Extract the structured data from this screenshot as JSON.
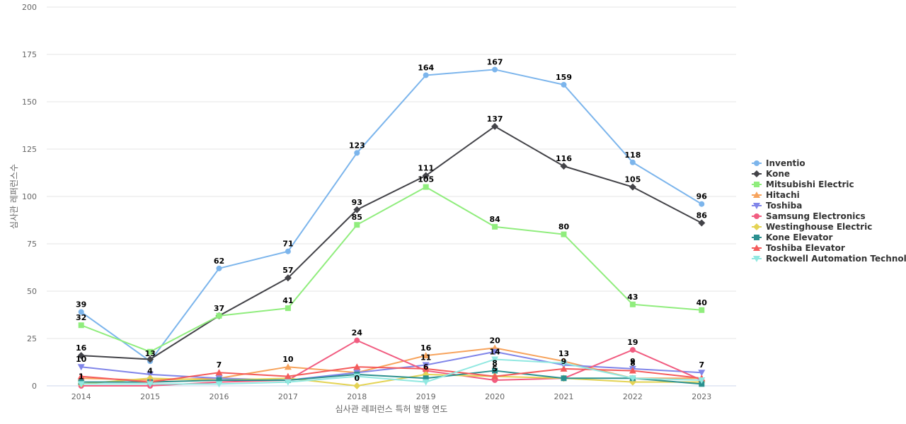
{
  "chart_data": {
    "type": "line",
    "title": "",
    "xlabel": "심사관 레퍼런스 특허 발행 연도",
    "ylabel": "심사관 레퍼런스수",
    "categories": [
      "2014",
      "2015",
      "2016",
      "2017",
      "2018",
      "2019",
      "2020",
      "2021",
      "2022",
      "2023"
    ],
    "ylim": [
      0,
      200
    ],
    "yticks": [
      0,
      25,
      50,
      75,
      100,
      125,
      150,
      175,
      200
    ],
    "grid": "horizontal",
    "legend_position": "right",
    "series": [
      {
        "name": "Inventio",
        "color": "#7cb5ec",
        "marker": "circle",
        "values": [
          39,
          13,
          62,
          71,
          123,
          164,
          167,
          159,
          118,
          96
        ],
        "labels": [
          true,
          true,
          true,
          true,
          true,
          true,
          true,
          true,
          true,
          true
        ]
      },
      {
        "name": "Kone",
        "color": "#434348",
        "marker": "diamond",
        "values": [
          16,
          14,
          37,
          57,
          93,
          111,
          137,
          116,
          105,
          86
        ],
        "labels": [
          true,
          false,
          false,
          true,
          true,
          true,
          true,
          true,
          true,
          true
        ]
      },
      {
        "name": "Mitsubishi Electric",
        "color": "#90ed7d",
        "marker": "square",
        "values": [
          32,
          18,
          37,
          41,
          85,
          105,
          84,
          80,
          43,
          40
        ],
        "labels": [
          true,
          false,
          true,
          true,
          true,
          true,
          true,
          true,
          true,
          true
        ]
      },
      {
        "name": "Hitachi",
        "color": "#f7a35c",
        "marker": "triangle",
        "values": [
          4,
          3,
          4,
          10,
          7,
          16,
          20,
          13,
          4,
          4
        ],
        "labels": [
          false,
          false,
          false,
          true,
          false,
          true,
          true,
          true,
          false,
          false
        ]
      },
      {
        "name": "Toshiba",
        "color": "#8085e9",
        "marker": "triangle-down",
        "values": [
          10,
          6,
          4,
          3,
          7,
          11,
          18,
          11,
          9,
          7
        ],
        "labels": [
          true,
          false,
          false,
          false,
          false,
          true,
          false,
          false,
          true,
          true
        ]
      },
      {
        "name": "Samsung Electronics",
        "color": "#f15c80",
        "marker": "circle",
        "values": [
          0,
          0,
          2,
          3,
          24,
          8,
          3,
          4,
          19,
          3
        ],
        "labels": [
          false,
          false,
          false,
          false,
          true,
          false,
          false,
          false,
          true,
          false
        ]
      },
      {
        "name": "Westinghouse Electric",
        "color": "#e4d354",
        "marker": "diamond",
        "values": [
          1,
          4,
          3,
          4,
          0,
          6,
          5,
          4,
          2,
          2
        ],
        "labels": [
          true,
          true,
          false,
          false,
          true,
          true,
          false,
          false,
          false,
          false
        ]
      },
      {
        "name": "Kone Elevator",
        "color": "#2b908f",
        "marker": "square",
        "values": [
          2,
          2,
          3,
          3,
          6,
          4,
          8,
          4,
          4,
          1
        ],
        "labels": [
          false,
          false,
          false,
          false,
          false,
          false,
          true,
          false,
          false,
          false
        ]
      },
      {
        "name": "Toshiba Elevator",
        "color": "#f45b5b",
        "marker": "triangle",
        "values": [
          5,
          2,
          7,
          5,
          10,
          9,
          5,
          9,
          8,
          4
        ],
        "labels": [
          false,
          false,
          true,
          false,
          false,
          false,
          true,
          true,
          true,
          false
        ]
      },
      {
        "name": "Rockwell Automation Technol...",
        "color": "#91e8e1",
        "marker": "triangle-down",
        "values": [
          1,
          1,
          1,
          2,
          5,
          2,
          14,
          12,
          4,
          3
        ],
        "labels": [
          false,
          false,
          false,
          false,
          false,
          false,
          true,
          false,
          false,
          false
        ]
      }
    ]
  }
}
